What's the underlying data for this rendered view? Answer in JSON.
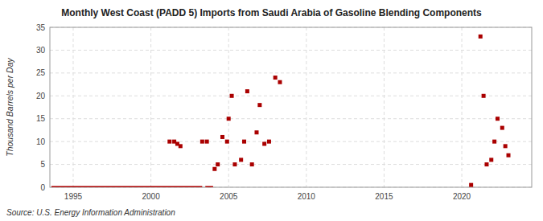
{
  "chart_data": {
    "type": "scatter",
    "title": "Monthly West Coast (PADD 5) Imports from Saudi Arabia of Gasoline Blending Components",
    "ylabel": "Thousand Barrels per Day",
    "annotations": [
      "Source: U.S. Energy Information Administration"
    ],
    "xlim": [
      1993.5,
      2024.5
    ],
    "ylim": [
      0,
      35
    ],
    "xticks": [
      1995,
      2000,
      2005,
      2010,
      2015,
      2020
    ],
    "yticks": [
      0,
      5,
      10,
      15,
      20,
      25,
      30,
      35
    ],
    "grid": true,
    "series": [
      {
        "type": "scatter",
        "marker": "square",
        "color": "#aa0000",
        "x": [
          2001.2,
          2001.5,
          2001.7,
          2001.9,
          2003.3,
          2003.6,
          2004.1,
          2004.3,
          2004.6,
          2004.9,
          2005.0,
          2005.2,
          2005.4,
          2005.8,
          2006.0,
          2006.2,
          2006.5,
          2006.8,
          2007.0,
          2007.3,
          2007.6,
          2008.0,
          2008.3,
          2020.6,
          2021.2,
          2021.4,
          2021.6,
          2021.9,
          2022.1,
          2022.3,
          2022.6,
          2022.8,
          2023.0
        ],
        "values": [
          10,
          10,
          9.5,
          9,
          10,
          10,
          4,
          5,
          11,
          10,
          15,
          20,
          5,
          6,
          10,
          21,
          5,
          12,
          18,
          9.5,
          10,
          24,
          23,
          0.5,
          33,
          20,
          5,
          6,
          10,
          15,
          13,
          9,
          7
        ]
      },
      {
        "type": "line",
        "line_style": "solid",
        "color": "#aa0000",
        "x": [
          1993.6,
          2003.3
        ],
        "values": [
          0,
          0
        ]
      },
      {
        "type": "line",
        "line_style": "solid",
        "color": "#aa0000",
        "x": [
          2003.5,
          2004.0
        ],
        "values": [
          0,
          0
        ]
      }
    ]
  }
}
